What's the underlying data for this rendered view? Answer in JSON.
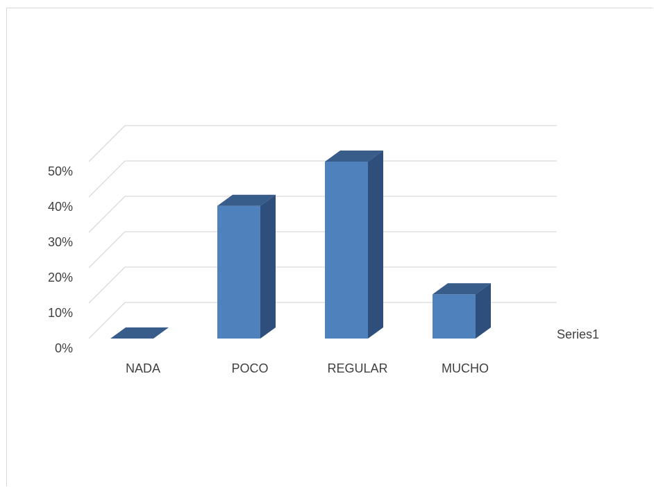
{
  "chart_data": {
    "type": "bar",
    "categories": [
      "NADA",
      "POCO",
      "REGULAR",
      "MUCHO"
    ],
    "series": [
      {
        "name": "Series1",
        "values": [
          0,
          0.375,
          0.5,
          0.125
        ]
      }
    ],
    "ylim": [
      0,
      0.5
    ],
    "y_ticks": [
      0,
      0.1,
      0.2,
      0.3,
      0.4,
      0.5
    ],
    "y_tick_labels": [
      "0%",
      "10%",
      "20%",
      "30%",
      "40%",
      "50%"
    ],
    "grid": true,
    "legend_position": "right",
    "bar_3d": true,
    "colors": {
      "bar_front": "#4f81bd",
      "bar_side": "#2e4f7c",
      "bar_top": "#385d8a",
      "gridline": "#d9d9d9",
      "text": "#404040"
    }
  }
}
